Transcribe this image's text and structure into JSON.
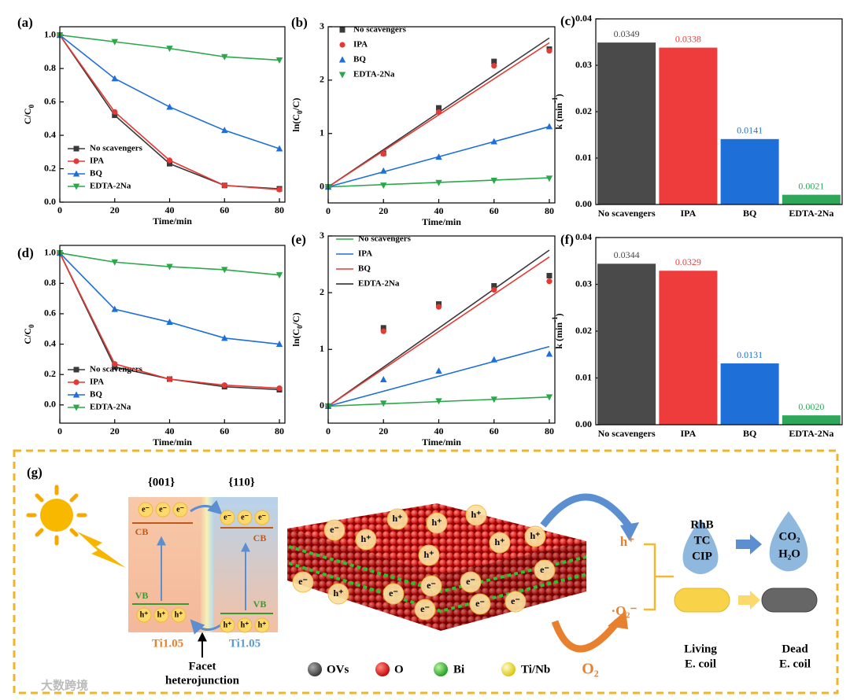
{
  "chart_data": [
    {
      "type": "line",
      "panel_label": "(a)",
      "xlabel": "Time/min",
      "ylabel": {
        "parts": [
          "C/C",
          "0"
        ],
        "script": "sub"
      },
      "xlim": [
        0,
        82
      ],
      "ylim": [
        0,
        1.05
      ],
      "xticks": [
        0,
        20,
        40,
        60,
        80
      ],
      "yticks": [
        {
          "value": 0,
          "label": "0.0"
        },
        0.2,
        0.4,
        0.6,
        0.8,
        {
          "value": 1,
          "label": "1.0"
        }
      ],
      "legend": "lower left",
      "legend_style": "line+marker",
      "x": [
        0,
        20,
        40,
        60,
        80
      ],
      "series": [
        {
          "name": "No scavengers",
          "color": "#3a3a3a",
          "marker": "square",
          "values": [
            1,
            0.52,
            0.23,
            0.1,
            0.08
          ]
        },
        {
          "name": "IPA",
          "color": "#e53935",
          "marker": "circle",
          "values": [
            1,
            0.54,
            0.25,
            0.1,
            0.075
          ]
        },
        {
          "name": "BQ",
          "color": "#1e6fd9",
          "marker": "triangle-up",
          "values": [
            1,
            0.74,
            0.57,
            0.43,
            0.32
          ]
        },
        {
          "name": "EDTA-2Na",
          "color": "#2ba84a",
          "marker": "triangle-down",
          "values": [
            1,
            0.96,
            0.92,
            0.87,
            0.85
          ]
        }
      ]
    },
    {
      "type": "scatter",
      "panel_label": "(b)",
      "xlabel": "Time/min",
      "ylabel": {
        "parts": [
          "ln(C",
          "0",
          "/C)"
        ],
        "script": "sub"
      },
      "xlim": [
        0,
        82
      ],
      "ylim": [
        -0.3,
        3
      ],
      "xticks": [
        0,
        20,
        40,
        60,
        80
      ],
      "yticks": [
        0,
        1,
        2,
        3
      ],
      "legend": "upper left",
      "legend_style": "marker",
      "x": [
        0,
        20,
        40,
        60,
        80
      ],
      "series": [
        {
          "name": "No scavengers",
          "color": "#3a3a3a",
          "marker": "square",
          "values": [
            0,
            0.63,
            1.48,
            2.35,
            2.58
          ],
          "fit": {
            "x": [
              0,
              80
            ],
            "values": [
              0,
              2.79
            ]
          }
        },
        {
          "name": "IPA",
          "color": "#e53935",
          "marker": "circle",
          "values": [
            0,
            0.62,
            1.4,
            2.27,
            2.55
          ],
          "fit": {
            "x": [
              0,
              80
            ],
            "values": [
              0,
              2.7
            ]
          }
        },
        {
          "name": "BQ",
          "color": "#1e6fd9",
          "marker": "triangle-up",
          "values": [
            0,
            0.3,
            0.56,
            0.85,
            1.13
          ],
          "fit": {
            "x": [
              0,
              80
            ],
            "values": [
              0,
              1.13
            ]
          }
        },
        {
          "name": "EDTA-2Na",
          "color": "#2ba84a",
          "marker": "triangle-down",
          "values": [
            0,
            0.03,
            0.08,
            0.12,
            0.16
          ],
          "fit": {
            "x": [
              0,
              80
            ],
            "values": [
              0,
              0.17
            ]
          }
        }
      ]
    },
    {
      "type": "bar",
      "panel_label": "(c)",
      "ylabel": {
        "parts": [
          "k (min",
          "-1",
          ")"
        ],
        "script": "sup"
      },
      "ylim": [
        0,
        0.04
      ],
      "yticks": [
        {
          "value": 0,
          "label": "0.00"
        },
        0.01,
        0.02,
        0.03,
        0.04
      ],
      "categories": [
        "No scavengers",
        "IPA",
        "BQ",
        "EDTA-2Na"
      ],
      "values": [
        0.0349,
        0.0338,
        0.0141,
        0.0021
      ],
      "colors": [
        "#4a4a4a",
        "#ee3b3b",
        "#1f6fd8",
        "#2fa75a"
      ]
    },
    {
      "type": "line",
      "panel_label": "(d)",
      "xlabel": "Time/min",
      "ylabel": {
        "parts": [
          "C/C",
          "0"
        ],
        "script": "sub"
      },
      "xlim": [
        0,
        82
      ],
      "ylim": [
        -0.12,
        1.05
      ],
      "xticks": [
        0,
        20,
        40,
        60,
        80
      ],
      "yticks": [
        {
          "value": 0,
          "label": "0.0"
        },
        0.2,
        0.4,
        0.6,
        0.8,
        {
          "value": 1,
          "label": "1.0"
        }
      ],
      "legend": "lower left",
      "legend_style": "line+marker",
      "x": [
        0,
        20,
        40,
        60,
        80
      ],
      "series": [
        {
          "name": "No scavengers",
          "color": "#3a3a3a",
          "marker": "square",
          "values": [
            1,
            0.25,
            0.17,
            0.12,
            0.1
          ]
        },
        {
          "name": "IPA",
          "color": "#e53935",
          "marker": "circle",
          "values": [
            1,
            0.27,
            0.17,
            0.13,
            0.11
          ]
        },
        {
          "name": "BQ",
          "color": "#1e6fd9",
          "marker": "triangle-up",
          "values": [
            1,
            0.63,
            0.545,
            0.44,
            0.4
          ]
        },
        {
          "name": "EDTA-2Na",
          "color": "#2ba84a",
          "marker": "triangle-down",
          "values": [
            1,
            0.94,
            0.91,
            0.89,
            0.855
          ]
        }
      ]
    },
    {
      "type": "scatter",
      "panel_label": "(e)",
      "xlabel": "Time/min",
      "ylabel": {
        "parts": [
          "ln(C",
          "0",
          "/C)"
        ],
        "script": "sub"
      },
      "xlim": [
        0,
        82
      ],
      "ylim": [
        -0.3,
        3
      ],
      "xticks": [
        0,
        20,
        40,
        60,
        80
      ],
      "yticks": [
        0,
        1,
        2,
        3
      ],
      "legend": "upper left",
      "legend_style": "line",
      "x": [
        0,
        20,
        40,
        60,
        80
      ],
      "series": [
        {
          "name": "No scavengers",
          "color": "#3a3a3a",
          "legend_color": "#2ba84a",
          "marker": "square",
          "values": [
            0,
            1.38,
            1.8,
            2.12,
            2.3
          ],
          "fit": {
            "x": [
              0,
              80
            ],
            "values": [
              0,
              2.75
            ]
          }
        },
        {
          "name": "IPA",
          "color": "#e53935",
          "legend_color": "#1e6fd9",
          "marker": "circle",
          "values": [
            0,
            1.32,
            1.75,
            2.05,
            2.2
          ],
          "fit": {
            "x": [
              0,
              80
            ],
            "values": [
              0,
              2.63
            ]
          }
        },
        {
          "name": "BQ",
          "color": "#1e6fd9",
          "legend_color": "#e53935",
          "marker": "triangle-up",
          "values": [
            0,
            0.47,
            0.62,
            0.82,
            0.92
          ],
          "fit": {
            "x": [
              0,
              80
            ],
            "values": [
              0,
              1.05
            ]
          }
        },
        {
          "name": "EDTA-2Na",
          "color": "#2ba84a",
          "legend_color": "#222222",
          "marker": "triangle-down",
          "values": [
            0,
            0.05,
            0.09,
            0.12,
            0.16
          ],
          "fit": {
            "x": [
              0,
              80
            ],
            "values": [
              0,
              0.16
            ]
          }
        }
      ]
    },
    {
      "type": "bar",
      "panel_label": "(f)",
      "ylabel": {
        "parts": [
          "k (min",
          "-1",
          ")"
        ],
        "script": "sup"
      },
      "ylim": [
        0,
        0.04
      ],
      "yticks": [
        {
          "value": 0,
          "label": "0.00"
        },
        0.01,
        0.02,
        0.03,
        0.04
      ],
      "categories": [
        "No scavengers",
        "IPA",
        "BQ",
        "EDTA-2Na"
      ],
      "values": [
        0.0344,
        0.0329,
        0.0131,
        0.002
      ],
      "value_labels": [
        "0.0344",
        "0.0329",
        "0.0131",
        "0.0020"
      ],
      "colors": [
        "#4a4a4a",
        "#ee3b3b",
        "#1f6fd8",
        "#2fa75a"
      ]
    }
  ],
  "schematic": {
    "panel_label": "(g)",
    "facets": [
      "{001}",
      "{110}"
    ],
    "electron": "e⁻",
    "hole": "h⁺",
    "cb": "CB",
    "vb": "VB",
    "materials": [
      "Ti1.05",
      "Ti1.05"
    ],
    "junction": [
      "Facet",
      "heterojunction"
    ],
    "legend": [
      "OVs",
      "O",
      "Bi",
      "Ti/Nb"
    ],
    "species": [
      "h⁺",
      "·O₂⁻",
      "O₂"
    ],
    "pollutants": [
      "RhB",
      "TC",
      "CIP"
    ],
    "products": [
      "CO₂",
      "H₂O"
    ],
    "bacteria": [
      [
        "Living",
        "E. coil"
      ],
      [
        "Dead",
        "E. coil"
      ]
    ]
  },
  "watermark": "大数跨境"
}
